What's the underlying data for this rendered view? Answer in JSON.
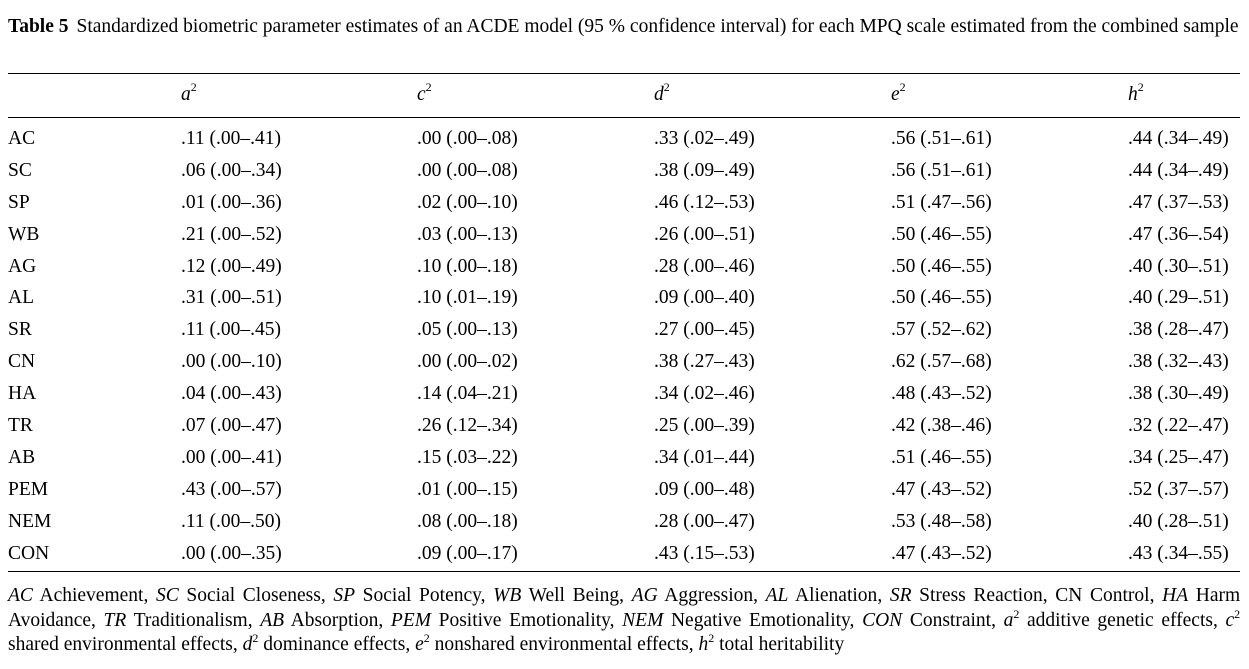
{
  "caption": {
    "label": "Table 5",
    "text": "Standardized biometric parameter estimates of an ACDE model (95 % confidence interval) for each MPQ scale estimated from the combined sample"
  },
  "columns": [
    {
      "base": "a",
      "sup": "2"
    },
    {
      "base": "c",
      "sup": "2"
    },
    {
      "base": "d",
      "sup": "2"
    },
    {
      "base": "e",
      "sup": "2"
    },
    {
      "base": "h",
      "sup": "2"
    }
  ],
  "rows": [
    {
      "scale": "AC",
      "a2": ".11 (.00–.41)",
      "c2": ".00 (.00–.08)",
      "d2": ".33 (.02–.49)",
      "e2": ".56 (.51–.61)",
      "h2": ".44 (.34–.49)"
    },
    {
      "scale": "SC",
      "a2": ".06 (.00–.34)",
      "c2": ".00 (.00–.08)",
      "d2": ".38 (.09–.49)",
      "e2": ".56 (.51–.61)",
      "h2": ".44 (.34–.49)"
    },
    {
      "scale": "SP",
      "a2": ".01 (.00–.36)",
      "c2": ".02 (.00–.10)",
      "d2": ".46 (.12–.53)",
      "e2": ".51 (.47–.56)",
      "h2": ".47 (.37–.53)"
    },
    {
      "scale": "WB",
      "a2": ".21 (.00–.52)",
      "c2": ".03 (.00–.13)",
      "d2": ".26 (.00–.51)",
      "e2": ".50 (.46–.55)",
      "h2": ".47 (.36–.54)"
    },
    {
      "scale": "AG",
      "a2": ".12 (.00–.49)",
      "c2": ".10 (.00–.18)",
      "d2": ".28 (.00–.46)",
      "e2": ".50 (.46–.55)",
      "h2": ".40 (.30–.51)"
    },
    {
      "scale": "AL",
      "a2": ".31 (.00–.51)",
      "c2": ".10 (.01–.19)",
      "d2": ".09 (.00–.40)",
      "e2": ".50 (.46–.55)",
      "h2": ".40 (.29–.51)"
    },
    {
      "scale": "SR",
      "a2": ".11 (.00–.45)",
      "c2": ".05 (.00–.13)",
      "d2": ".27 (.00–.45)",
      "e2": ".57 (.52–.62)",
      "h2": ".38 (.28–.47)"
    },
    {
      "scale": "CN",
      "a2": ".00 (.00–.10)",
      "c2": ".00 (.00–.02)",
      "d2": ".38 (.27–.43)",
      "e2": ".62 (.57–.68)",
      "h2": ".38 (.32–.43)"
    },
    {
      "scale": "HA",
      "a2": ".04 (.00–.43)",
      "c2": ".14 (.04–.21)",
      "d2": ".34 (.02–.46)",
      "e2": ".48 (.43–.52)",
      "h2": ".38 (.30–.49)"
    },
    {
      "scale": "TR",
      "a2": ".07 (.00–.47)",
      "c2": ".26 (.12–.34)",
      "d2": ".25 (.00–.39)",
      "e2": ".42 (.38–.46)",
      "h2": ".32 (.22–.47)"
    },
    {
      "scale": "AB",
      "a2": ".00 (.00–.41)",
      "c2": ".15 (.03–.22)",
      "d2": ".34 (.01–.44)",
      "e2": ".51 (.46–.55)",
      "h2": ".34 (.25–.47)"
    },
    {
      "scale": "PEM",
      "a2": ".43 (.00–.57)",
      "c2": ".01 (.00–.15)",
      "d2": ".09 (.00–.48)",
      "e2": ".47 (.43–.52)",
      "h2": ".52 (.37–.57)"
    },
    {
      "scale": "NEM",
      "a2": ".11 (.00–.50)",
      "c2": ".08 (.00–.18)",
      "d2": ".28 (.00–.47)",
      "e2": ".53 (.48–.58)",
      "h2": ".40 (.28–.51)"
    },
    {
      "scale": "CON",
      "a2": ".00 (.00–.35)",
      "c2": ".09 (.00–.17)",
      "d2": ".43 (.15–.53)",
      "e2": ".47 (.43–.52)",
      "h2": ".43 (.34–.55)"
    }
  ],
  "footnote": {
    "abbrevs": [
      {
        "abbr": "AC",
        "term": "Achievement",
        "italic": true,
        "sep": ","
      },
      {
        "abbr": "SC",
        "term": "Social Closeness",
        "italic": true,
        "sep": ","
      },
      {
        "abbr": "SP",
        "term": "Social Potency",
        "italic": true,
        "sep": ","
      },
      {
        "abbr": "WB",
        "term": "Well Being",
        "italic": true,
        "sep": ","
      },
      {
        "abbr": "AG",
        "term": "Aggression",
        "italic": true,
        "sep": ","
      },
      {
        "abbr": "AL",
        "term": "Alienation",
        "italic": true,
        "sep": ","
      },
      {
        "abbr": "SR",
        "term": "Stress Reaction",
        "italic": true,
        "sep": ","
      },
      {
        "abbr": "CN",
        "term": "Control",
        "italic": false,
        "sep": ","
      },
      {
        "abbr": "HA",
        "term": "Harm Avoidance",
        "italic": true,
        "sep": ","
      },
      {
        "abbr": "TR",
        "term": "Traditionalism",
        "italic": true,
        "sep": ","
      },
      {
        "abbr": "AB",
        "term": "Absorption",
        "italic": true,
        "sep": ","
      },
      {
        "abbr": "PEM",
        "term": "Positive Emotionality",
        "italic": true,
        "sep": ","
      },
      {
        "abbr": "NEM",
        "term": "Negative Emotionality",
        "italic": true,
        "sep": ","
      },
      {
        "abbr": "CON",
        "term": "Constraint",
        "italic": true,
        "sep": ","
      }
    ],
    "params": [
      {
        "base": "a",
        "sup": "2",
        "term": "additive genetic effects",
        "sep": ","
      },
      {
        "base": "c",
        "sup": "2",
        "term": "shared environmental effects",
        "sep": ","
      },
      {
        "base": "d",
        "sup": "2",
        "term": "dominance effects",
        "sep": ","
      },
      {
        "base": "e",
        "sup": "2",
        "term": "nonshared environmental effects",
        "sep": ","
      },
      {
        "base": "h",
        "sup": "2",
        "term": "total heritability",
        "sep": ""
      }
    ]
  }
}
